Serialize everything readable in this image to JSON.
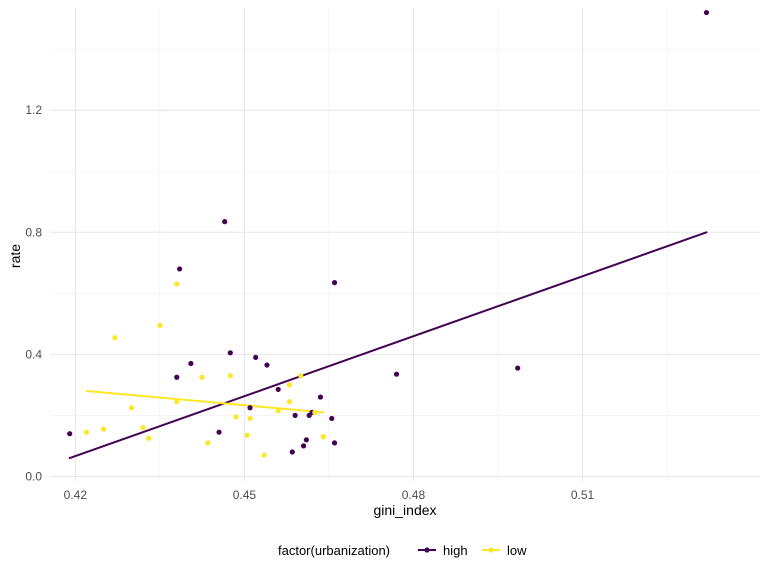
{
  "chart_data": {
    "type": "scatter",
    "title": "",
    "xlabel": "gini_index",
    "ylabel": "rate",
    "xlim": [
      0.4155,
      0.5415
    ],
    "ylim": [
      -0.015,
      1.535
    ],
    "x_ticks": [
      0.42,
      0.45,
      0.48,
      0.51
    ],
    "x_tick_labels": [
      "0.42",
      "0.45",
      "0.48",
      "0.51"
    ],
    "y_ticks": [
      0.0,
      0.4,
      0.8,
      1.2
    ],
    "y_tick_labels": [
      "0.0",
      "0.4",
      "0.8",
      "1.2"
    ],
    "grid": true,
    "legend": {
      "title": "factor(urbanization)",
      "placement": "bottom",
      "entries": [
        "high",
        "low"
      ]
    },
    "series": [
      {
        "name": "high",
        "color": "#440154",
        "points": [
          [
            0.419,
            0.14
          ],
          [
            0.438,
            0.325
          ],
          [
            0.4385,
            0.68
          ],
          [
            0.4405,
            0.37
          ],
          [
            0.4455,
            0.145
          ],
          [
            0.4465,
            0.835
          ],
          [
            0.4475,
            0.405
          ],
          [
            0.451,
            0.225
          ],
          [
            0.452,
            0.39
          ],
          [
            0.454,
            0.365
          ],
          [
            0.456,
            0.285
          ],
          [
            0.4585,
            0.08
          ],
          [
            0.459,
            0.2
          ],
          [
            0.4605,
            0.1
          ],
          [
            0.461,
            0.12
          ],
          [
            0.4615,
            0.2
          ],
          [
            0.462,
            0.21
          ],
          [
            0.4635,
            0.26
          ],
          [
            0.4655,
            0.19
          ],
          [
            0.466,
            0.11
          ],
          [
            0.466,
            0.635
          ],
          [
            0.477,
            0.335
          ],
          [
            0.4985,
            0.355
          ],
          [
            0.532,
            1.52
          ]
        ],
        "trend": [
          [
            0.419,
            0.06
          ],
          [
            0.532,
            0.8
          ]
        ]
      },
      {
        "name": "low",
        "color": "#fde725",
        "points": [
          [
            0.422,
            0.145
          ],
          [
            0.425,
            0.155
          ],
          [
            0.427,
            0.455
          ],
          [
            0.43,
            0.225
          ],
          [
            0.432,
            0.16
          ],
          [
            0.433,
            0.125
          ],
          [
            0.435,
            0.495
          ],
          [
            0.438,
            0.63
          ],
          [
            0.438,
            0.245
          ],
          [
            0.4425,
            0.325
          ],
          [
            0.4435,
            0.11
          ],
          [
            0.4475,
            0.33
          ],
          [
            0.4485,
            0.195
          ],
          [
            0.4505,
            0.135
          ],
          [
            0.451,
            0.19
          ],
          [
            0.4535,
            0.07
          ],
          [
            0.456,
            0.215
          ],
          [
            0.458,
            0.3
          ],
          [
            0.458,
            0.245
          ],
          [
            0.46,
            0.33
          ],
          [
            0.4625,
            0.21
          ],
          [
            0.464,
            0.13
          ]
        ],
        "trend": [
          [
            0.422,
            0.28
          ],
          [
            0.464,
            0.21
          ]
        ]
      }
    ]
  }
}
